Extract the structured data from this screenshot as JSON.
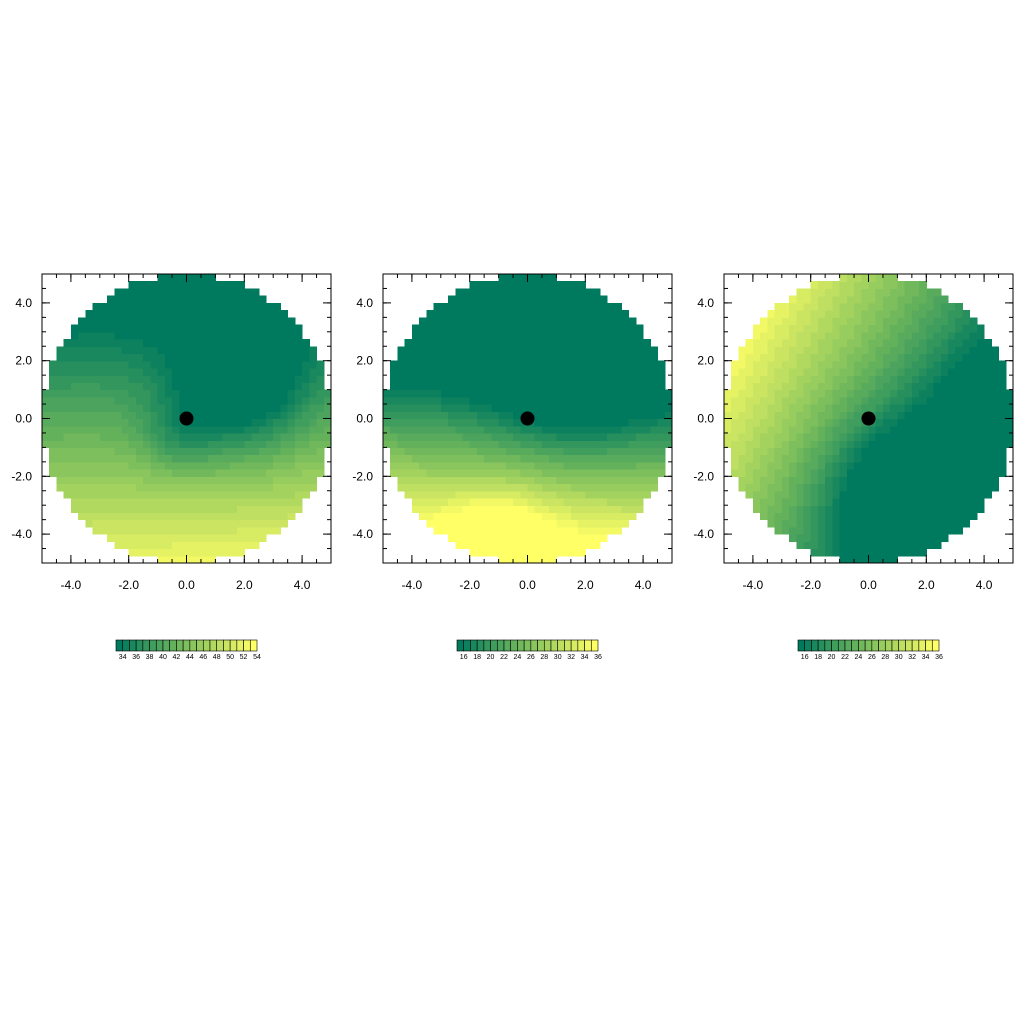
{
  "chart_data": [
    {
      "type": "heatmap",
      "domain": "disk",
      "xlim": [
        -5,
        5
      ],
      "ylim": [
        -5,
        5
      ],
      "x_ticks": [
        -4,
        -2,
        0,
        2,
        4
      ],
      "x_tick_labels": [
        "-4.0",
        "-2.0",
        "0.0",
        "2.0",
        "4.0"
      ],
      "y_ticks": [
        4,
        2,
        0,
        -2,
        -4
      ],
      "y_tick_labels": [
        "4.0",
        "2.0",
        "0.0",
        "-2.0",
        "-4.0"
      ],
      "center_marker": [
        0,
        0
      ],
      "colorbar_levels": [
        33,
        34,
        35,
        36,
        37,
        38,
        39,
        40,
        41,
        42,
        43,
        44,
        45,
        46,
        47,
        48,
        49,
        50,
        51,
        52,
        53,
        54
      ],
      "colorbar_ticks": [
        34,
        36,
        38,
        40,
        42,
        44,
        46,
        48,
        50,
        52,
        54
      ],
      "colorbar_tick_labels": [
        "34",
        "36",
        "38",
        "40",
        "42",
        "44",
        "46",
        "48",
        "50",
        "52",
        "54"
      ],
      "field": {
        "base": 41,
        "gradient": [
          0.1,
          -2.3
        ],
        "lows": [
          [
            1.8,
            1.0,
            10,
            1.6
          ],
          [
            -0.3,
            -0.7,
            4,
            0.9
          ]
        ],
        "highs": []
      }
    },
    {
      "type": "heatmap",
      "domain": "disk",
      "xlim": [
        -5,
        5
      ],
      "ylim": [
        -5,
        5
      ],
      "x_ticks": [
        -4,
        -2,
        0,
        2,
        4
      ],
      "x_tick_labels": [
        "-4.0",
        "-2.0",
        "0.0",
        "2.0",
        "4.0"
      ],
      "y_ticks": [
        4,
        2,
        0,
        -2,
        -4
      ],
      "y_tick_labels": [
        "4.0",
        "2.0",
        "0.0",
        "-2.0",
        "-4.0"
      ],
      "center_marker": [
        0,
        0
      ],
      "colorbar_levels": [
        15,
        16,
        17,
        18,
        19,
        20,
        21,
        22,
        23,
        24,
        25,
        26,
        27,
        28,
        29,
        30,
        31,
        32,
        33,
        34,
        35,
        36
      ],
      "colorbar_ticks": [
        16,
        18,
        20,
        22,
        24,
        26,
        28,
        30,
        32,
        34,
        36
      ],
      "colorbar_tick_labels": [
        "16",
        "18",
        "20",
        "22",
        "24",
        "26",
        "28",
        "30",
        "32",
        "34",
        "36"
      ],
      "field": {
        "base": 19,
        "gradient": [
          -0.3,
          -4.2
        ],
        "lows": [
          [
            1.5,
            1.5,
            7,
            1.8
          ]
        ],
        "highs": [
          [
            -1,
            -4.2,
            6,
            1.2
          ]
        ]
      }
    },
    {
      "type": "heatmap",
      "domain": "disk",
      "xlim": [
        -5,
        5
      ],
      "ylim": [
        -5,
        5
      ],
      "x_ticks": [
        -4,
        -2,
        0,
        2,
        4
      ],
      "x_tick_labels": [
        "-4.0",
        "-2.0",
        "0.0",
        "2.0",
        "4.0"
      ],
      "y_ticks": [
        4,
        2,
        0,
        -2,
        -4
      ],
      "y_tick_labels": [
        "4.0",
        "2.0",
        "0.0",
        "-2.0",
        "-4.0"
      ],
      "center_marker": [
        0,
        0
      ],
      "colorbar_levels": [
        15,
        16,
        17,
        18,
        19,
        20,
        21,
        22,
        23,
        24,
        25,
        26,
        27,
        28,
        29,
        30,
        31,
        32,
        33,
        34,
        35,
        36
      ],
      "colorbar_ticks": [
        16,
        18,
        20,
        22,
        24,
        26,
        28,
        30,
        32,
        34,
        36
      ],
      "colorbar_tick_labels": [
        "16",
        "18",
        "20",
        "22",
        "24",
        "26",
        "28",
        "30",
        "32",
        "34",
        "36"
      ],
      "field": {
        "base": 22,
        "gradient": [
          -2.2,
          1.3
        ],
        "lows": [
          [
            1.0,
            -2.5,
            8,
            1.8
          ],
          [
            3.5,
            1.0,
            2,
            1.5
          ]
        ],
        "highs": []
      }
    }
  ],
  "colors": {
    "low": "#007a5e",
    "mid": "#7dbf5c",
    "high": "#ffff66",
    "marker": "#000000",
    "axis": "#000000",
    "background": "#ffffff"
  }
}
